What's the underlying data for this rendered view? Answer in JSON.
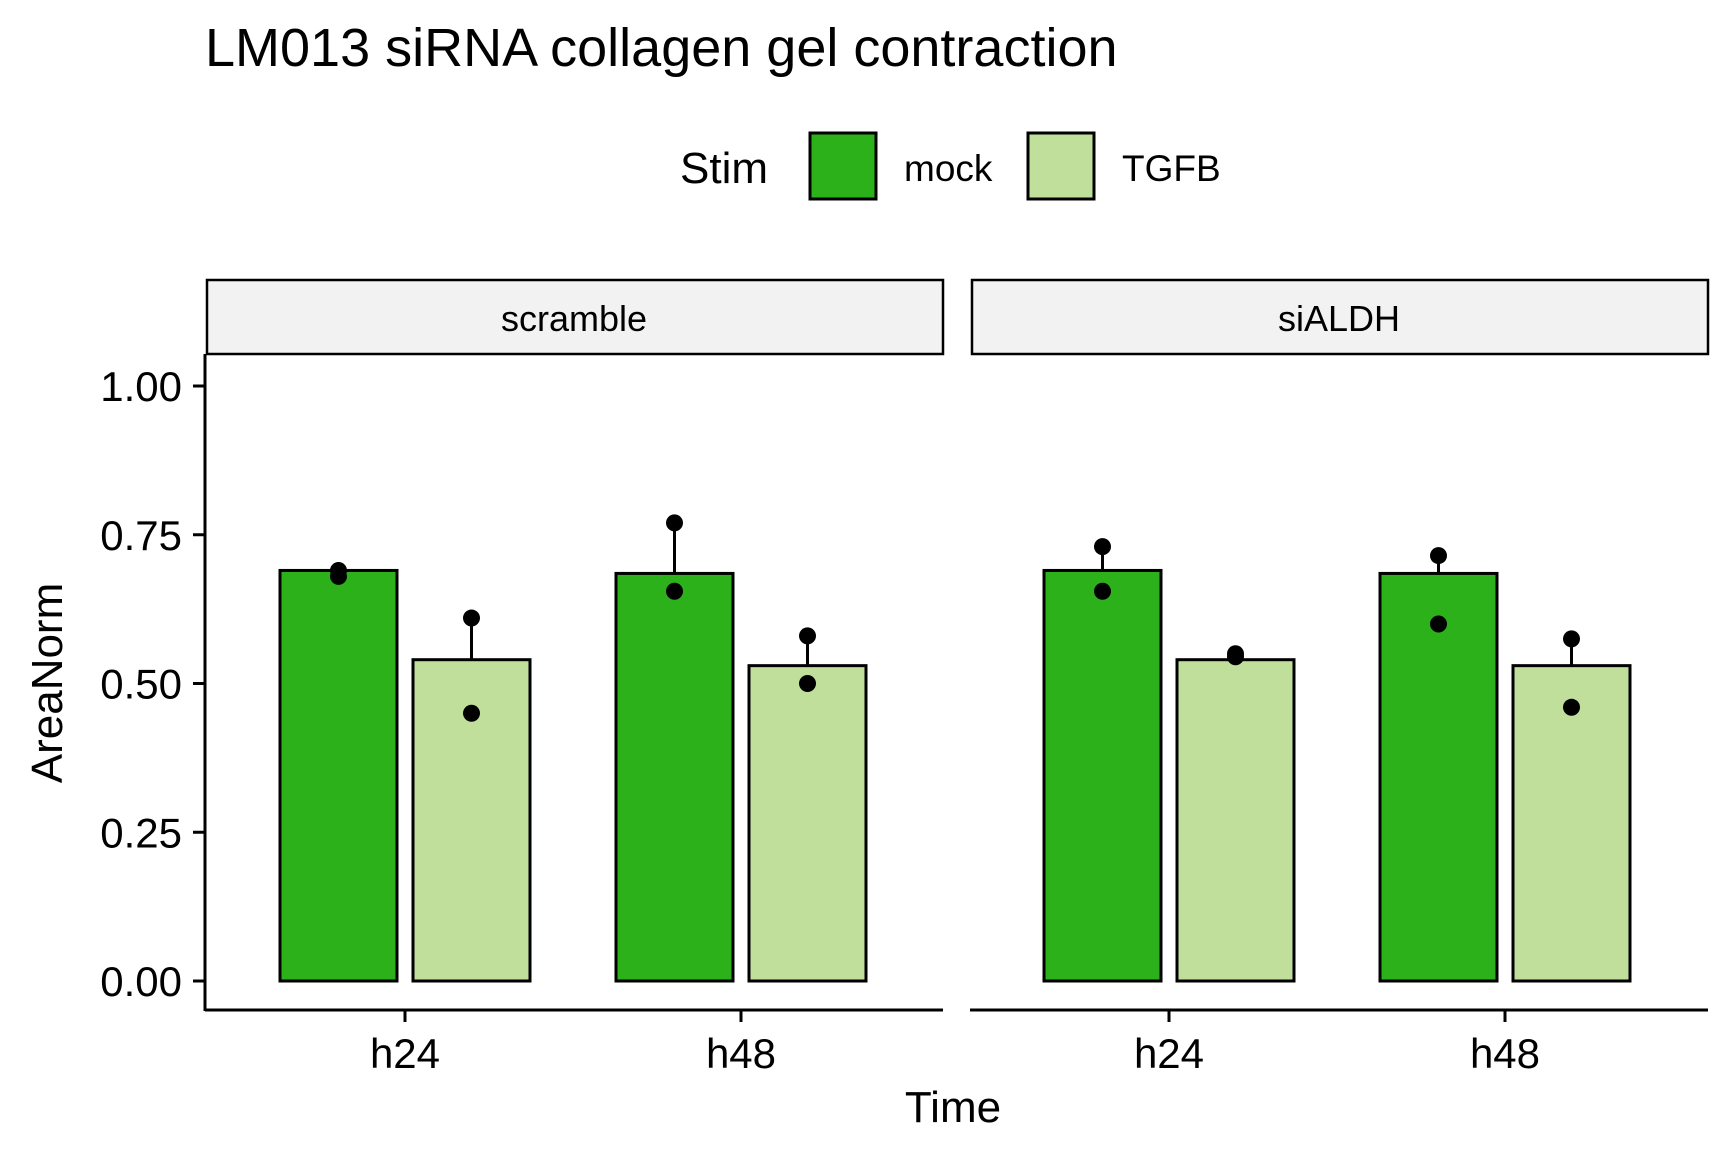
{
  "chart_data": {
    "type": "bar",
    "title": "LM013 siRNA collagen gel contraction",
    "xlabel": "Time",
    "ylabel": "AreaNorm",
    "ylim": [
      0,
      1.05
    ],
    "yticks": [
      0,
      0.25,
      0.5,
      0.75,
      1.0
    ],
    "ytick_labels": [
      "0.00",
      "0.25",
      "0.50",
      "0.75",
      "1.00"
    ],
    "categories": [
      "h24",
      "h48"
    ],
    "legend": {
      "title": "Stim",
      "position": "top",
      "entries": [
        {
          "label": "mock",
          "color": "#2db11b"
        },
        {
          "label": "TGFB",
          "color": "#bfdf9b"
        }
      ]
    },
    "facets": [
      {
        "label": "scramble",
        "groups": [
          {
            "category": "h24",
            "bars": [
              {
                "stim": "mock",
                "value": 0.69,
                "error_upper": 0.69,
                "points": [
                  0.69,
                  0.68
                ]
              },
              {
                "stim": "TGFB",
                "value": 0.54,
                "error_upper": 0.61,
                "points": [
                  0.61,
                  0.45
                ]
              }
            ]
          },
          {
            "category": "h48",
            "bars": [
              {
                "stim": "mock",
                "value": 0.685,
                "error_upper": 0.77,
                "points": [
                  0.77,
                  0.655
                ]
              },
              {
                "stim": "TGFB",
                "value": 0.53,
                "error_upper": 0.58,
                "points": [
                  0.58,
                  0.5
                ]
              }
            ]
          }
        ]
      },
      {
        "label": "siALDH",
        "groups": [
          {
            "category": "h24",
            "bars": [
              {
                "stim": "mock",
                "value": 0.69,
                "error_upper": 0.73,
                "points": [
                  0.73,
                  0.655
                ]
              },
              {
                "stim": "TGFB",
                "value": 0.54,
                "error_upper": 0.55,
                "points": [
                  0.55,
                  0.545
                ]
              }
            ]
          },
          {
            "category": "h48",
            "bars": [
              {
                "stim": "mock",
                "value": 0.685,
                "error_upper": 0.715,
                "points": [
                  0.715,
                  0.6
                ]
              },
              {
                "stim": "TGFB",
                "value": 0.53,
                "error_upper": 0.575,
                "points": [
                  0.575,
                  0.46
                ]
              }
            ]
          }
        ]
      }
    ]
  }
}
